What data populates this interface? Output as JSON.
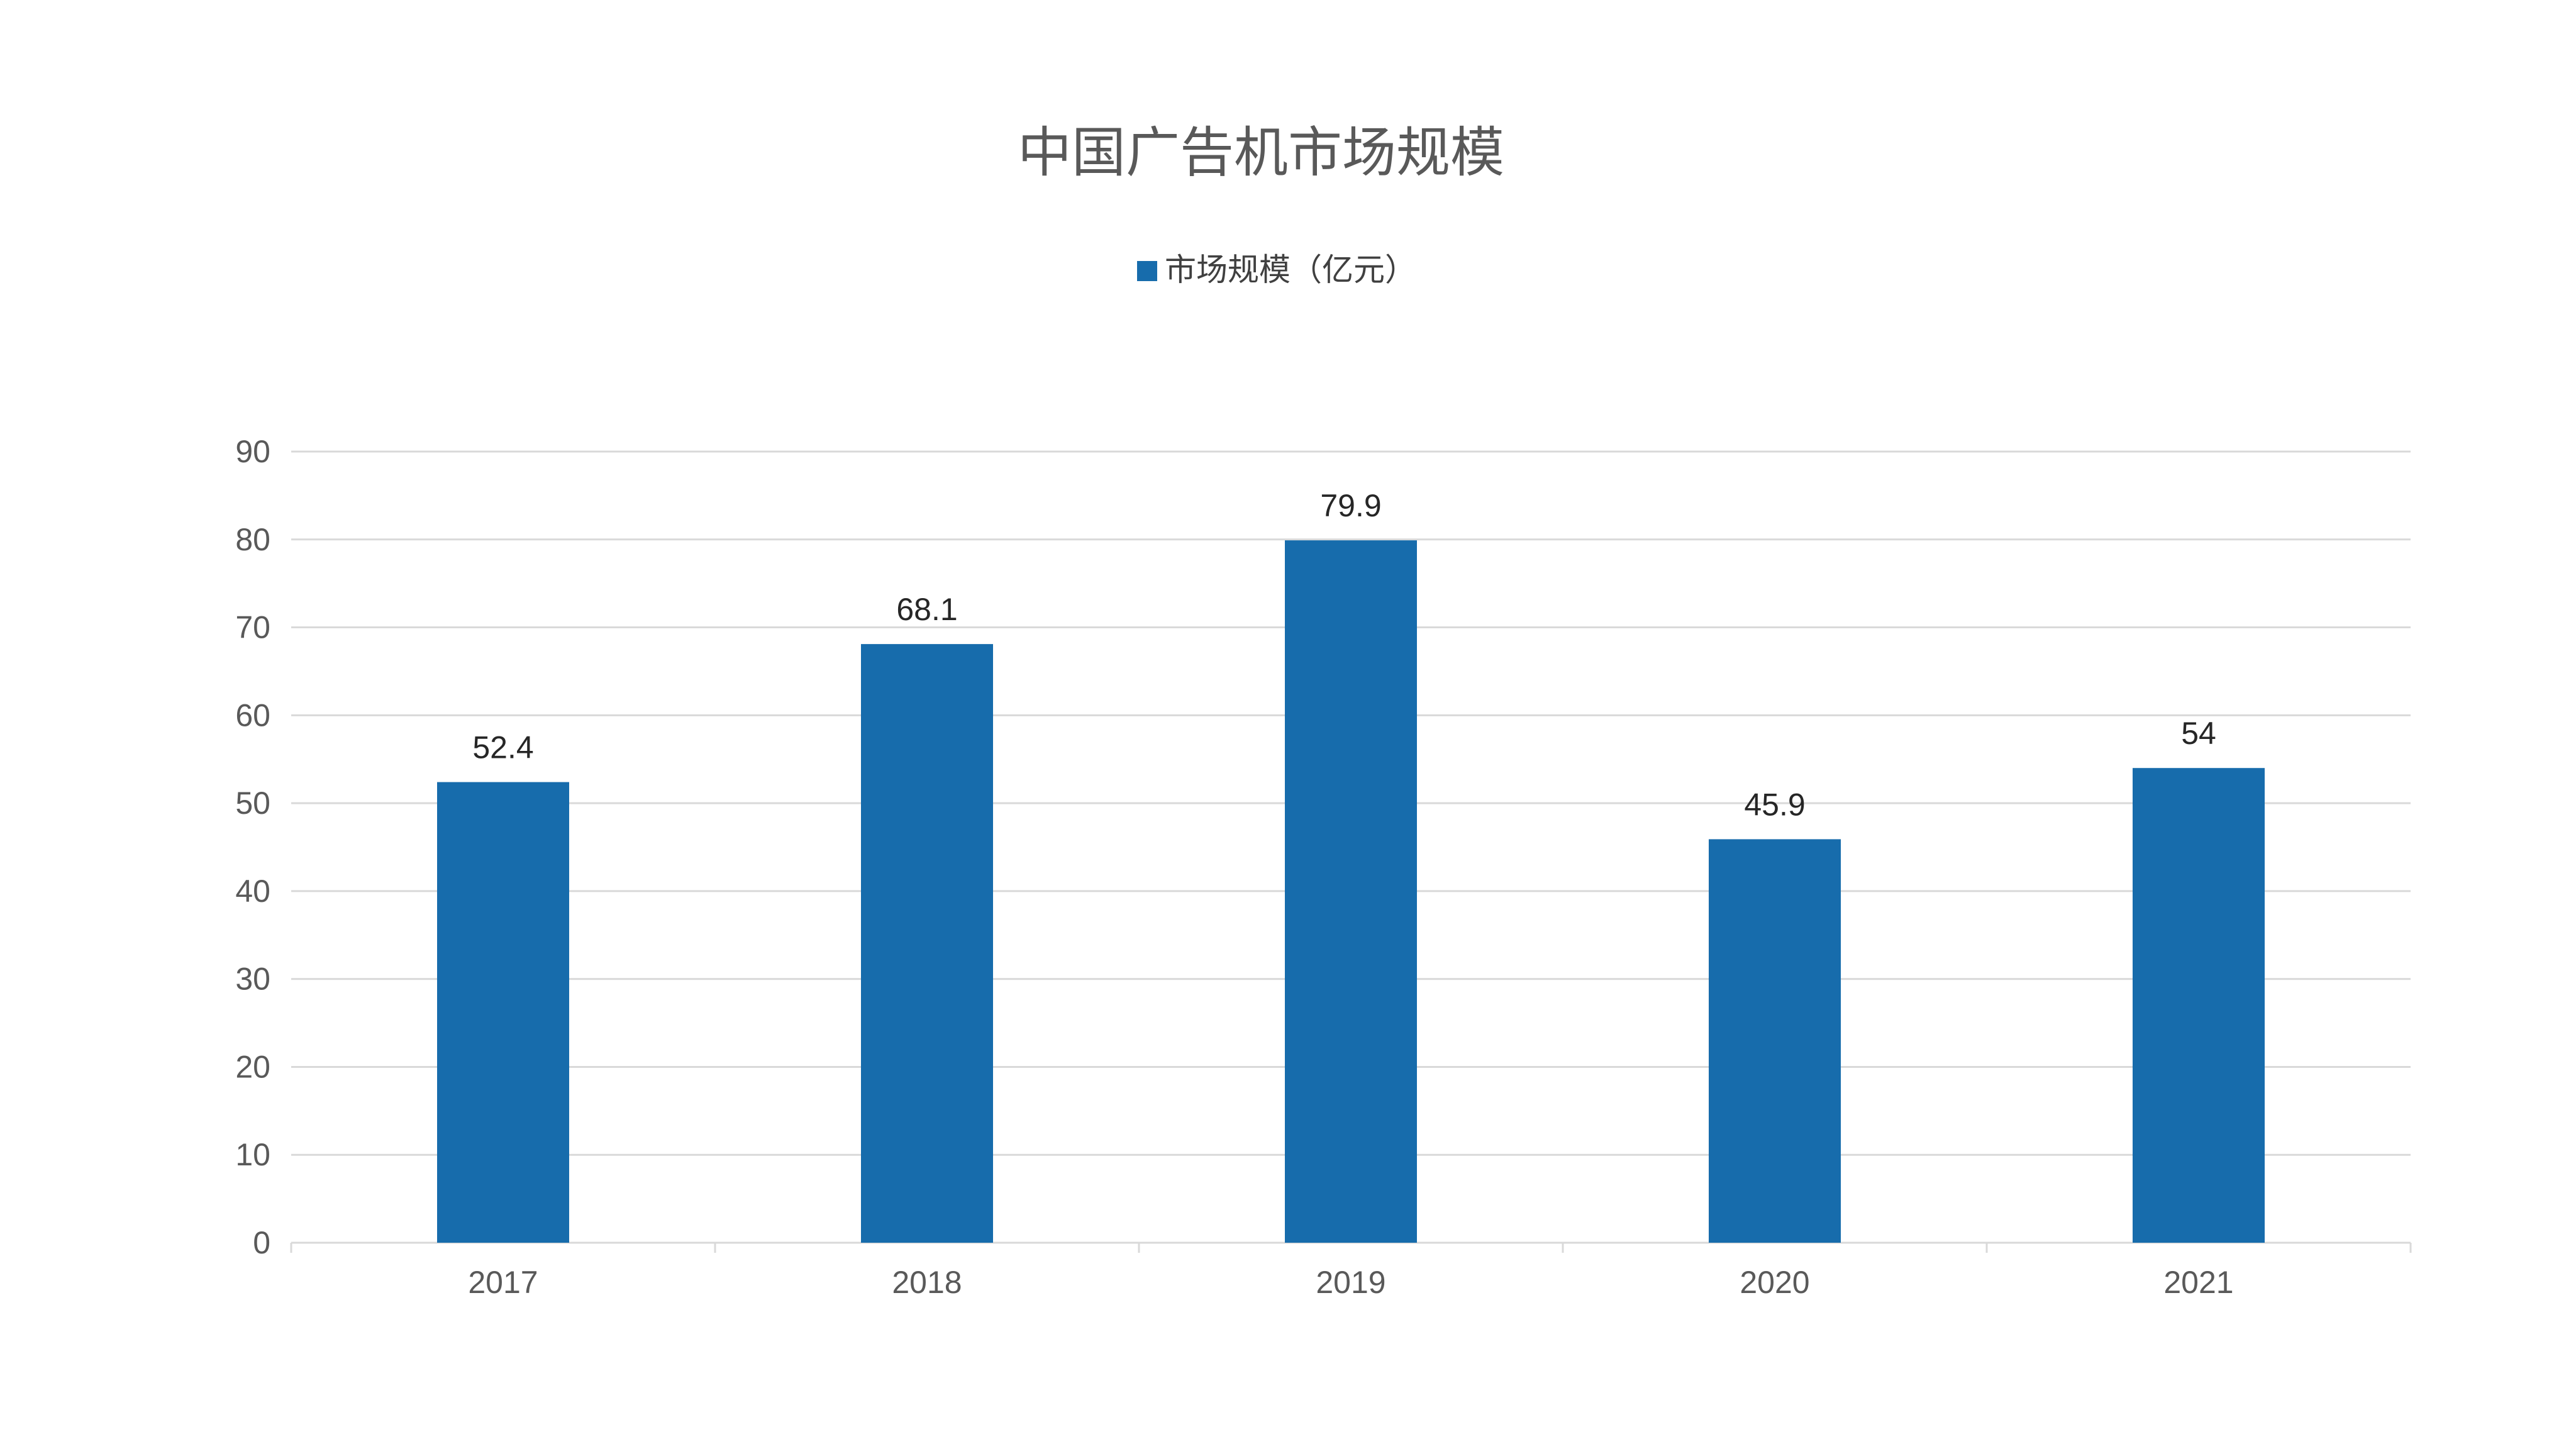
{
  "chart_data": {
    "type": "bar",
    "title": "中国广告机市场规模",
    "categories": [
      "2017",
      "2018",
      "2019",
      "2020",
      "2021"
    ],
    "series": [
      {
        "name": "市场规模（亿元）",
        "values": [
          52.4,
          68.1,
          79.9,
          45.9,
          54
        ],
        "color": "#176cac"
      }
    ],
    "data_labels": [
      "52.4",
      "68.1",
      "79.9",
      "45.9",
      "54"
    ],
    "y_ticks": [
      "0",
      "10",
      "20",
      "30",
      "40",
      "50",
      "60",
      "70",
      "80",
      "90"
    ],
    "ylim": [
      0,
      90
    ],
    "xlabel": "",
    "ylabel": "",
    "grid": true,
    "legend_position": "top"
  }
}
